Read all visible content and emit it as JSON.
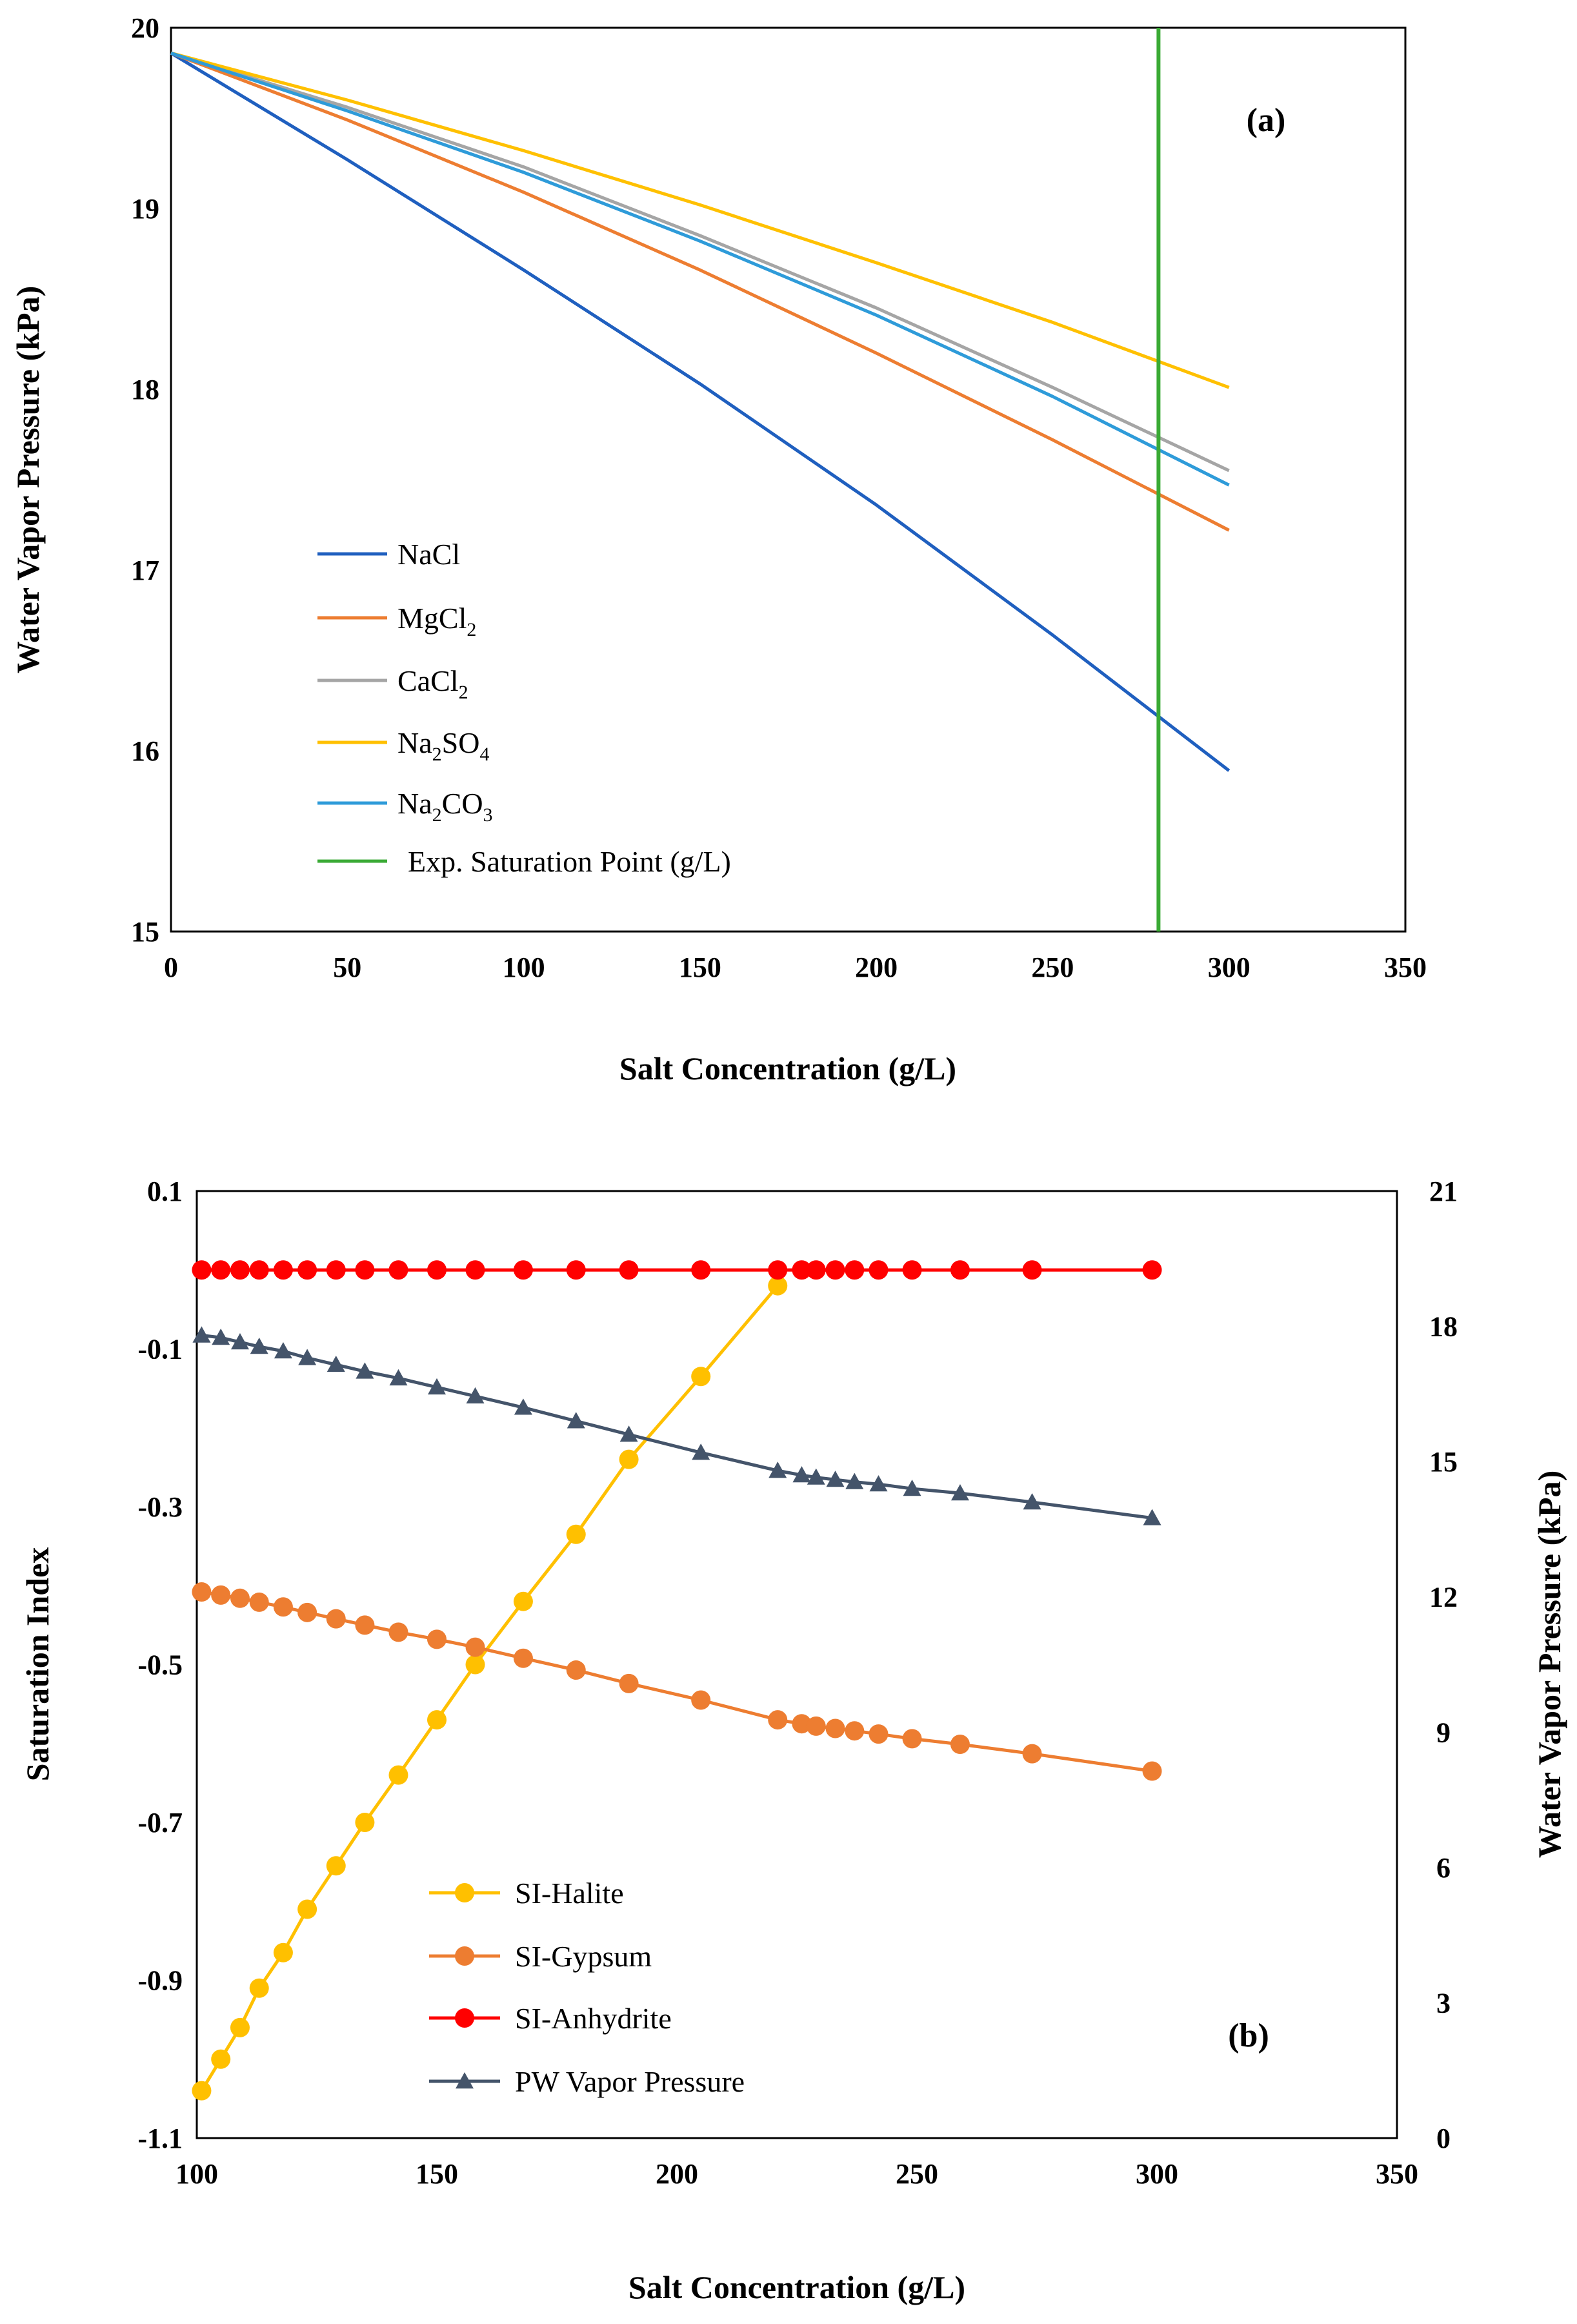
{
  "chart_data": [
    {
      "panel": "(a)",
      "type": "line",
      "xlabel": "Salt Concentration (g/L)",
      "ylabel": "Water Vapor Pressure (kPa)",
      "xlim": [
        0,
        350
      ],
      "ylim": [
        15,
        20
      ],
      "xticks": [
        "0",
        "50",
        "100",
        "150",
        "200",
        "250",
        "300",
        "350"
      ],
      "yticks": [
        "15",
        "16",
        "17",
        "18",
        "19",
        "20"
      ],
      "legend_position": "lower-left",
      "x": [
        0,
        50,
        100,
        150,
        200,
        250,
        300
      ],
      "series": [
        {
          "name": "NaCl",
          "label_main": "NaCl",
          "label_sub": "",
          "label_tail": "",
          "color": "#1F5FBF",
          "values": [
            19.86,
            19.27,
            18.66,
            18.03,
            17.36,
            16.64,
            15.89
          ]
        },
        {
          "name": "MgCl2",
          "label_main": "MgCl",
          "label_sub": "2",
          "label_tail": "",
          "color": "#ED7D31",
          "values": [
            19.86,
            19.49,
            19.09,
            18.66,
            18.2,
            17.72,
            17.22
          ]
        },
        {
          "name": "CaCl2",
          "label_main": "CaCl",
          "label_sub": "2",
          "label_tail": "",
          "color": "#A5A5A5",
          "values": [
            19.86,
            19.56,
            19.23,
            18.85,
            18.45,
            18.01,
            17.55
          ]
        },
        {
          "name": "Na2SO4",
          "label_main": "Na",
          "label_sub": "2",
          "label_tail": "SO",
          "label_sub2": "4",
          "color": "#FFC000",
          "values": [
            19.86,
            19.6,
            19.32,
            19.02,
            18.7,
            18.37,
            18.01
          ]
        },
        {
          "name": "Na2CO3",
          "label_main": "Na",
          "label_sub": "2",
          "label_tail": "CO",
          "label_sub2": "3",
          "color": "#2E9BD9",
          "values": [
            19.86,
            19.54,
            19.2,
            18.82,
            18.41,
            17.96,
            17.47
          ]
        }
      ],
      "vline": {
        "name": "Exp. Saturation Point (g/L)",
        "x": 280,
        "color": "#3AAA35"
      }
    },
    {
      "panel": "(b)",
      "type": "line",
      "xlabel": "Salt Concentration (g/L)",
      "ylabel_left": "Saturation Index",
      "ylabel_right": "Water Vapor Pressure (kPa)",
      "xlim": [
        100,
        350
      ],
      "ylim_left": [
        -1.1,
        0.1
      ],
      "ylim_right": [
        0,
        21
      ],
      "xticks": [
        "100",
        "150",
        "200",
        "250",
        "300",
        "350"
      ],
      "yticks_left": [
        "-1.1",
        "-0.9",
        "-0.7",
        "-0.5",
        "-0.3",
        "-0.1",
        "0.1"
      ],
      "yticks_right": [
        "0",
        "3",
        "6",
        "9",
        "12",
        "15",
        "18",
        "21"
      ],
      "legend_position": "lower-left",
      "x": [
        101,
        105,
        109,
        113,
        118,
        123,
        129,
        135,
        142,
        150,
        158,
        168,
        179,
        190,
        205,
        221,
        226,
        229,
        233,
        237,
        242,
        249,
        259,
        274,
        299
      ],
      "series": [
        {
          "name": "SI-Halite",
          "axis": "left",
          "marker": "circle",
          "color": "#FFC000",
          "x": [
            101,
            105,
            109,
            113,
            118,
            123,
            129,
            135,
            142,
            150,
            158,
            168,
            179,
            190,
            205,
            221
          ],
          "values": [
            -1.04,
            -1.0,
            -0.96,
            -0.91,
            -0.865,
            -0.81,
            -0.755,
            -0.7,
            -0.64,
            -0.57,
            -0.5,
            -0.42,
            -0.335,
            -0.24,
            -0.135,
            -0.02
          ]
        },
        {
          "name": "SI-Gypsum",
          "axis": "left",
          "marker": "circle",
          "color": "#ED7D31",
          "values": [
            -0.408,
            -0.412,
            -0.416,
            -0.421,
            -0.427,
            -0.434,
            -0.442,
            -0.45,
            -0.459,
            -0.468,
            -0.478,
            -0.492,
            -0.507,
            -0.524,
            -0.545,
            -0.57,
            -0.575,
            -0.578,
            -0.581,
            -0.584,
            -0.588,
            -0.594,
            -0.601,
            -0.613,
            -0.635
          ]
        },
        {
          "name": "SI-Anhydrite",
          "axis": "left",
          "marker": "circle",
          "color": "#FF0000",
          "values": [
            0.0,
            0.0,
            0.0,
            0.0,
            0.0,
            0.0,
            0.0,
            0.0,
            0.0,
            0.0,
            0.0,
            0.0,
            0.0,
            0.0,
            0.0,
            0.0,
            0.0,
            0.0,
            0.0,
            0.0,
            0.0,
            0.0,
            0.0,
            0.0,
            0.0
          ]
        },
        {
          "name": "PW Vapor Pressure",
          "axis": "right",
          "marker": "triangle",
          "color": "#44546A",
          "values": [
            17.8,
            17.75,
            17.65,
            17.55,
            17.45,
            17.3,
            17.15,
            17.0,
            16.85,
            16.65,
            16.45,
            16.2,
            15.9,
            15.6,
            15.2,
            14.8,
            14.7,
            14.65,
            14.6,
            14.55,
            14.5,
            14.4,
            14.3,
            14.1,
            13.75
          ]
        }
      ]
    }
  ]
}
